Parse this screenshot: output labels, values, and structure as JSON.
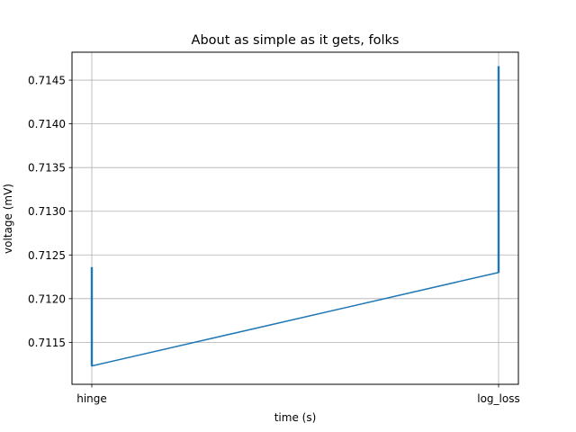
{
  "chart_data": {
    "type": "line",
    "title": "About as simple as it gets, folks",
    "xlabel": "time (s)",
    "ylabel": "voltage (mV)",
    "categories": [
      "hinge",
      "log_loss"
    ],
    "ylim": [
      0.71102,
      0.71482
    ],
    "yticks": [
      0.7115,
      0.712,
      0.7125,
      0.713,
      0.7135,
      0.714,
      0.7145
    ],
    "ytick_labels": [
      "0.7115",
      "0.7120",
      "0.7125",
      "0.7130",
      "0.7135",
      "0.7140",
      "0.7145"
    ],
    "grid": true,
    "series": [
      {
        "color": "#1f77b4",
        "points": [
          [
            "hinge",
            0.71236
          ],
          [
            "hinge",
            0.71123
          ],
          [
            "log_loss",
            0.7123
          ],
          [
            "log_loss",
            0.71466
          ]
        ]
      }
    ]
  }
}
